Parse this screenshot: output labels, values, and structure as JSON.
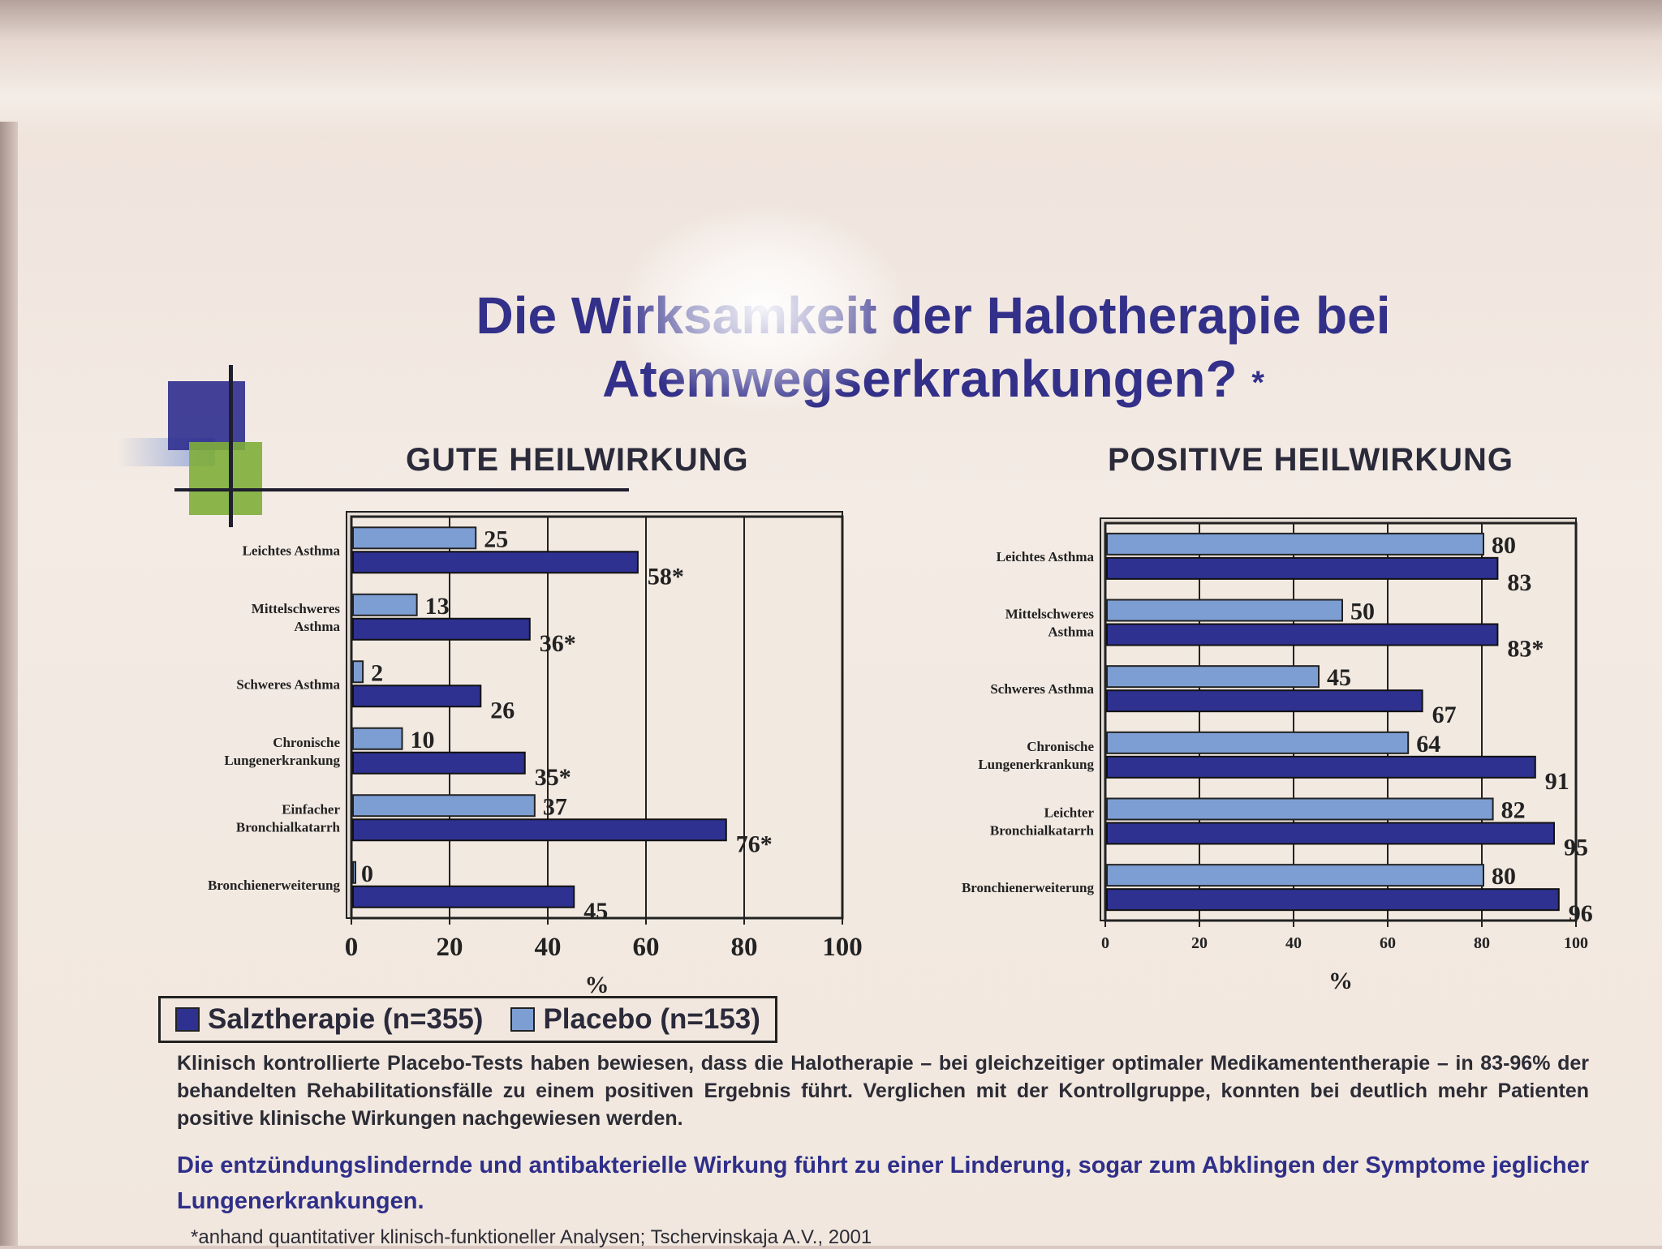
{
  "title_line1": "Die Wirksamkeit der Halotherapie bei",
  "title_line2": "Atemwegserkrankungen?",
  "title_asterisk": "*",
  "legend": {
    "series1": "Salztherapie (n=355)",
    "series2": "Placebo (n=153)",
    "series1_color": "#2e3190",
    "series2_color": "#7d9ed2"
  },
  "paragraph1": "Klinisch kontrollierte Placebo-Tests haben bewiesen, dass die Halotherapie – bei gleichzeitiger optimaler Medikamententherapie – in 83-96% der behandelten Rehabilitationsfälle zu einem positiven Ergebnis führt. Verglichen mit der Kontrollgruppe, konnten bei deutlich mehr Patienten positive klinische Wirkungen nachgewiesen werden.",
  "paragraph2": "Die entzündungslindernde und antibakterielle Wirkung führt zu einer Linderung, sogar zum Abklingen der Symptome jeglicher Lungenerkrankungen.",
  "footnote": "*anhand quantitativer klinisch-funktioneller Analysen; Tschervinskaja A.V., 2001",
  "chart_data": [
    {
      "type": "bar",
      "orientation": "horizontal",
      "title": "GUTE HEILWIRKUNG",
      "categories": [
        "Leichtes Asthma",
        "Mittelschweres Asthma",
        "Schweres Asthma",
        "Chronische Lungenerkrankung",
        "Einfacher Bronchialkatarrh",
        "Bronchienerweiterung"
      ],
      "series": [
        {
          "name": "Placebo (n=153)",
          "values": [
            25,
            13,
            2,
            10,
            37,
            0
          ],
          "labels": [
            "25",
            "13",
            "2",
            "10",
            "37",
            "0"
          ]
        },
        {
          "name": "Salztherapie (n=355)",
          "values": [
            58,
            36,
            26,
            35,
            76,
            45
          ],
          "labels": [
            "58*",
            "36*",
            "26",
            "35*",
            "76*",
            "45"
          ]
        }
      ],
      "xlabel": "%",
      "xlim": [
        0,
        100
      ],
      "xticks": [
        "0",
        "20",
        "40",
        "60",
        "80",
        "100"
      ],
      "grid": true
    },
    {
      "type": "bar",
      "orientation": "horizontal",
      "title": "POSITIVE HEILWIRKUNG",
      "categories": [
        "Leichtes Asthma",
        "Mittelschweres Asthma",
        "Schweres Asthma",
        "Chronische Lungenerkrankung",
        "Leichter Bronchialkatarrh",
        "Bronchienerweiterung"
      ],
      "series": [
        {
          "name": "Placebo (n=153)",
          "values": [
            80,
            50,
            45,
            64,
            82,
            80
          ],
          "labels": [
            "80",
            "50",
            "45",
            "64",
            "82",
            "80"
          ]
        },
        {
          "name": "Salztherapie (n=355)",
          "values": [
            83,
            83,
            67,
            91,
            95,
            96
          ],
          "labels": [
            "83",
            "83*",
            "67",
            "91",
            "95",
            "96"
          ]
        }
      ],
      "xlabel": "%",
      "xlim": [
        0,
        100
      ],
      "xticks": [
        "0",
        "20",
        "40",
        "60",
        "80",
        "100"
      ],
      "grid": true
    }
  ]
}
